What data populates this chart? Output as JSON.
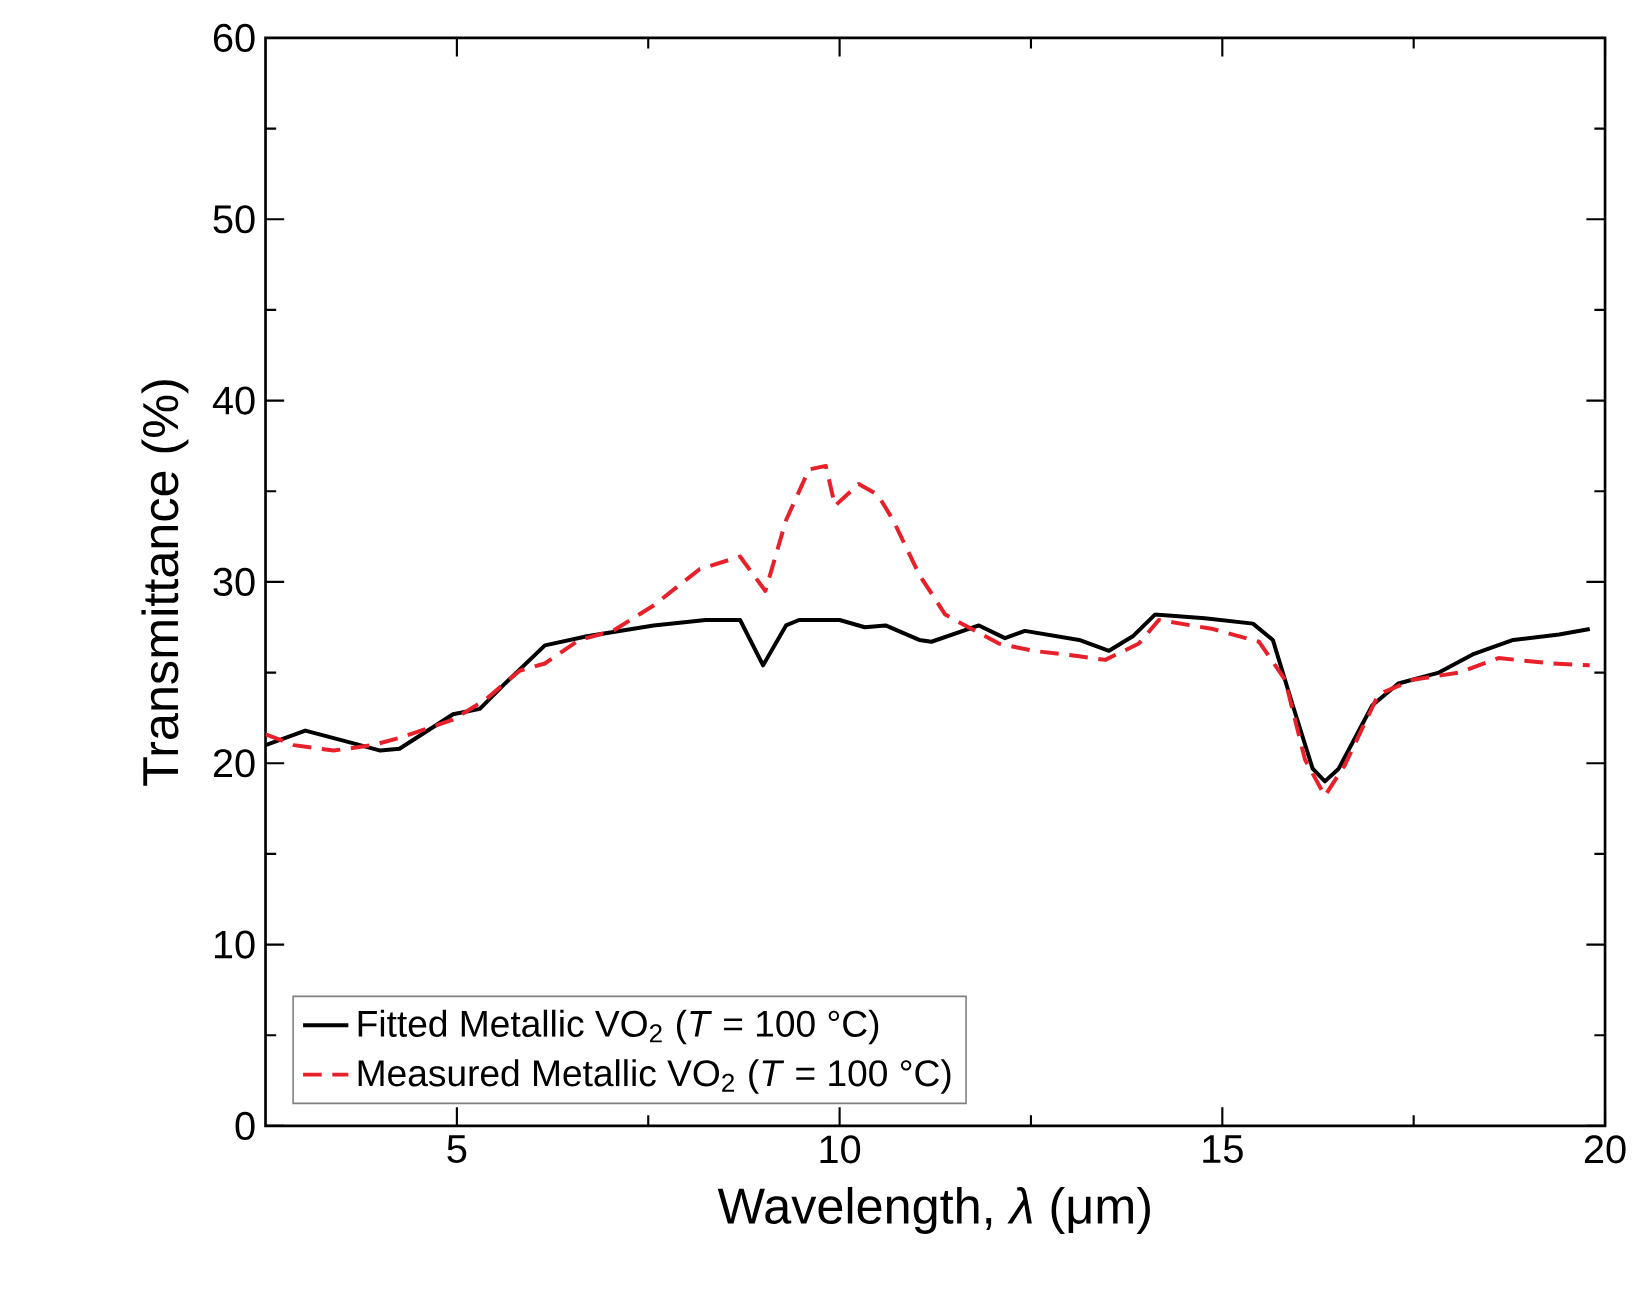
{
  "chart_data": {
    "type": "line",
    "xlabel": "Wavelength, *λ* (μm)",
    "ylabel": "Transmittance (%)",
    "xlim": [
      2.5,
      20
    ],
    "ylim": [
      0,
      60
    ],
    "xticks": [
      5,
      10,
      15,
      20
    ],
    "yticks": [
      0,
      10,
      20,
      30,
      40,
      50,
      60
    ],
    "legend": "bottom left",
    "series": [
      {
        "name": "Fitted Metallic VO$_{2}$ (*T* = 100 °C)",
        "color": "#000000",
        "line_style": "solid",
        "x": [
          2.5,
          3.02,
          3.65,
          4.0,
          4.25,
          4.95,
          5.3,
          5.63,
          6.15,
          6.7,
          7.57,
          8.25,
          8.7,
          9.0,
          9.3,
          9.47,
          10.0,
          10.33,
          10.6,
          11.04,
          11.2,
          11.82,
          12.16,
          12.42,
          13.13,
          13.52,
          13.83,
          14.12,
          14.77,
          15.4,
          15.66,
          15.92,
          16.18,
          16.34,
          16.52,
          16.96,
          17.3,
          17.83,
          18.27,
          18.8,
          19.4,
          19.8
        ],
        "values": [
          21.0,
          21.8,
          21.1,
          20.7,
          20.8,
          22.7,
          23.0,
          24.4,
          26.5,
          27.0,
          27.6,
          27.9,
          27.9,
          25.4,
          27.6,
          27.9,
          27.9,
          27.5,
          27.6,
          26.8,
          26.7,
          27.6,
          26.9,
          27.3,
          26.8,
          26.2,
          27.0,
          28.2,
          28.0,
          27.7,
          26.8,
          23.2,
          19.7,
          19.0,
          19.7,
          23.2,
          24.4,
          25.0,
          26.0,
          26.8,
          27.1,
          27.4
        ]
      },
      {
        "name": "Measured Metallic VO$_{2}$ (*T* = 100 °C)",
        "color": "#e8202a",
        "line_style": "dashed",
        "x": [
          2.5,
          2.87,
          3.39,
          3.9,
          4.25,
          4.95,
          5.37,
          5.82,
          6.15,
          6.6,
          7.04,
          7.57,
          8.17,
          8.7,
          9.03,
          9.3,
          9.6,
          9.82,
          9.94,
          10.25,
          10.5,
          10.7,
          11.04,
          11.38,
          11.64,
          12.08,
          12.53,
          13.13,
          13.47,
          13.91,
          14.17,
          14.88,
          15.48,
          15.82,
          16.08,
          16.34,
          16.6,
          17.04,
          17.49,
          18.09,
          18.61,
          19.31,
          19.8
        ],
        "values": [
          21.6,
          21.0,
          20.7,
          21.0,
          21.4,
          22.4,
          23.5,
          25.1,
          25.5,
          26.8,
          27.3,
          28.7,
          30.7,
          31.4,
          29.5,
          33.4,
          36.2,
          36.4,
          34.2,
          35.4,
          34.8,
          33.4,
          30.4,
          28.2,
          27.6,
          26.6,
          26.2,
          25.9,
          25.7,
          26.6,
          27.9,
          27.4,
          26.7,
          24.6,
          20.2,
          18.2,
          19.9,
          23.8,
          24.6,
          25.0,
          25.8,
          25.5,
          25.4
        ]
      }
    ]
  }
}
